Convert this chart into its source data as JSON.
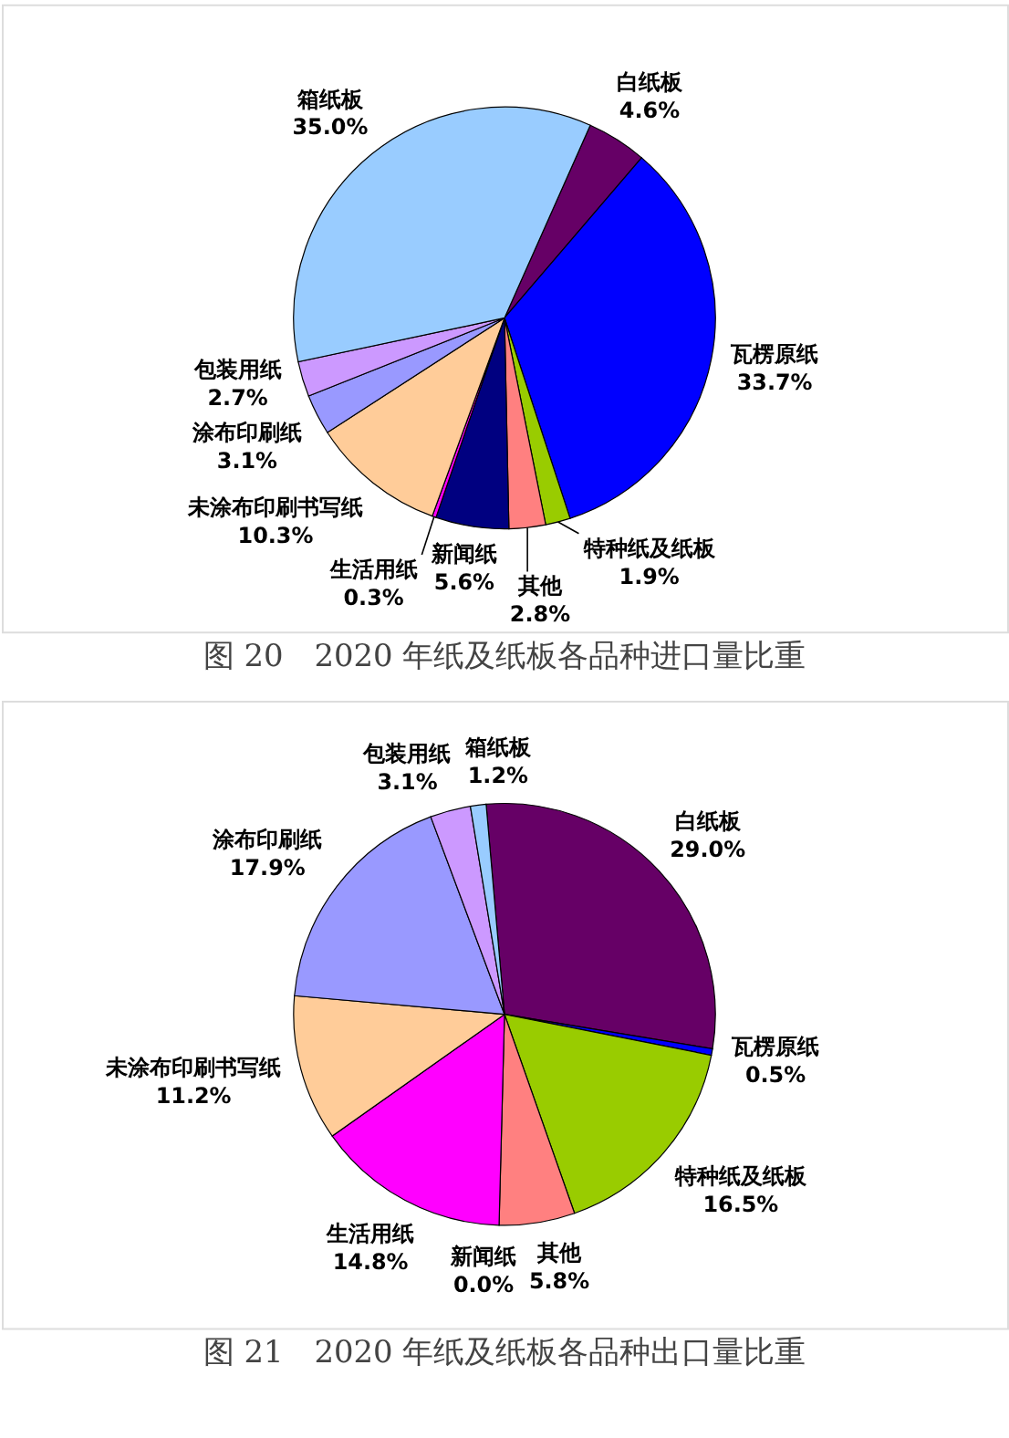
{
  "chart_data": [
    {
      "type": "pie",
      "title": "图 20　2020 年纸及纸板各品种进口量比重",
      "categories": [
        "白纸板",
        "瓦楞原纸",
        "特种纸及纸板",
        "其他",
        "新闻纸",
        "生活用纸",
        "未涂布印刷书写纸",
        "涂布印刷纸",
        "包装用纸",
        "箱纸板"
      ],
      "values": [
        4.6,
        33.7,
        1.9,
        2.8,
        5.6,
        0.3,
        10.3,
        3.1,
        2.7,
        35.0
      ],
      "value_labels": [
        "4.6%",
        "33.7%",
        "1.9%",
        "2.8%",
        "5.6%",
        "0.3%",
        "10.3%",
        "3.1%",
        "2.7%",
        "35.0%"
      ],
      "colors": [
        "#660066",
        "#0000ff",
        "#99cc00",
        "#ff8080",
        "#000080",
        "#ff00ff",
        "#ffcc99",
        "#9999ff",
        "#cc99ff",
        "#99ccff"
      ]
    },
    {
      "type": "pie",
      "title": "图 21　2020 年纸及纸板各品种出口量比重",
      "categories": [
        "白纸板",
        "瓦楞原纸",
        "特种纸及纸板",
        "其他",
        "新闻纸",
        "生活用纸",
        "未涂布印刷书写纸",
        "涂布印刷纸",
        "包装用纸",
        "箱纸板"
      ],
      "values": [
        29.0,
        0.5,
        16.5,
        5.8,
        0.0,
        14.8,
        11.2,
        17.9,
        3.1,
        1.2
      ],
      "value_labels": [
        "29.0%",
        "0.5%",
        "16.5%",
        "5.8%",
        "0.0%",
        "14.8%",
        "11.2%",
        "17.9%",
        "3.1%",
        "1.2%"
      ],
      "colors": [
        "#660066",
        "#0000ff",
        "#99cc00",
        "#ff8080",
        "#000080",
        "#ff00ff",
        "#ffcc99",
        "#9999ff",
        "#cc99ff",
        "#99ccff"
      ]
    }
  ]
}
